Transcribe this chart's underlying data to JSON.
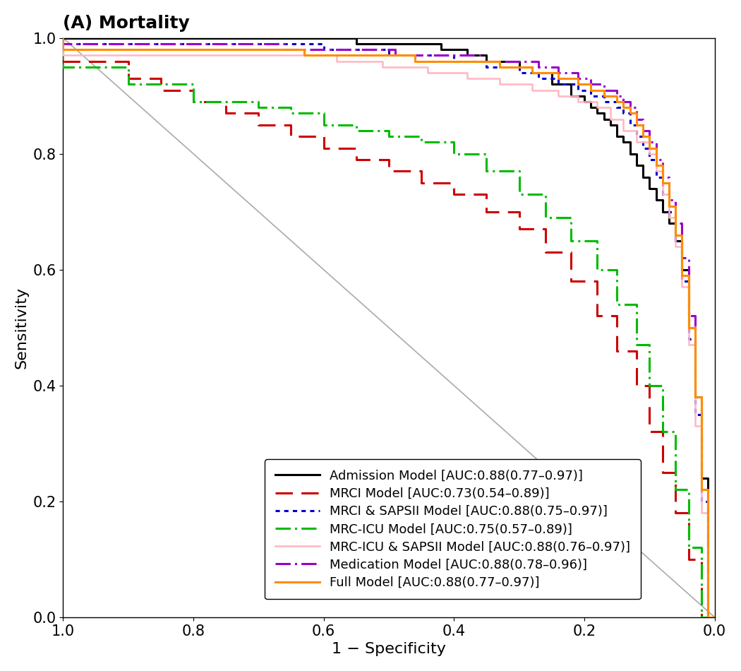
{
  "title": "(A) Mortality",
  "xlabel": "1 − Specificity",
  "ylabel": "Sensitivity",
  "xlim": [
    1.0,
    0.0
  ],
  "ylim": [
    0.0,
    1.0
  ],
  "xticks": [
    1.0,
    0.8,
    0.6,
    0.4,
    0.2,
    0.0
  ],
  "yticks": [
    0.0,
    0.2,
    0.4,
    0.6,
    0.8,
    1.0
  ],
  "background_color": "#ffffff",
  "diagonal_color": "#aaaaaa",
  "legend": [
    {
      "label": "Admission Model [AUC:0.88(0.77–0.97)]",
      "color": "#000000",
      "linestyle": "solid",
      "linewidth": 2.5
    },
    {
      "label": "MRCI Model [AUC:0.73(0.54–0.89)]",
      "color": "#cc0000",
      "linestyle": "dashed",
      "linewidth": 2.5
    },
    {
      "label": "MRCI & SAPSII Model [AUC:0.88(0.75–0.97)]",
      "color": "#0000cc",
      "linestyle": "dotted",
      "linewidth": 2.5
    },
    {
      "label": "MRC-ICU Model [AUC:0.75(0.57–0.89)]",
      "color": "#00bb00",
      "linestyle": "dashdot",
      "linewidth": 2.5
    },
    {
      "label": "MRC-ICU & SAPSII Model [AUC:0.88(0.76–0.97)]",
      "color": "#ffb6c1",
      "linestyle": "solid",
      "linewidth": 2.0
    },
    {
      "label": "Medication Model [AUC:0.88(0.78–0.96)]",
      "color": "#9900cc",
      "linestyle": "dashdot",
      "linewidth": 2.5
    },
    {
      "label": "Full Model [AUC:0.88(0.77–0.97)]",
      "color": "#ff8c00",
      "linestyle": "solid",
      "linewidth": 2.5
    }
  ],
  "admission_fpr": [
    0.0,
    0.01,
    0.02,
    0.03,
    0.04,
    0.05,
    0.06,
    0.07,
    0.08,
    0.09,
    0.1,
    0.11,
    0.12,
    0.13,
    0.14,
    0.15,
    0.16,
    0.17,
    0.18,
    0.19,
    0.2,
    0.22,
    0.25,
    0.28,
    0.3,
    0.35,
    0.38,
    0.4,
    0.42,
    0.45,
    0.5,
    0.55,
    0.6,
    0.65,
    0.7,
    1.0
  ],
  "admission_tpr": [
    0.0,
    0.24,
    0.38,
    0.5,
    0.6,
    0.65,
    0.68,
    0.7,
    0.72,
    0.74,
    0.76,
    0.78,
    0.8,
    0.82,
    0.83,
    0.85,
    0.86,
    0.87,
    0.88,
    0.89,
    0.9,
    0.92,
    0.94,
    0.95,
    0.96,
    0.97,
    0.98,
    0.98,
    0.99,
    0.99,
    0.99,
    1.0,
    1.0,
    1.0,
    1.0,
    1.0
  ],
  "mrci_fpr": [
    0.0,
    0.02,
    0.04,
    0.06,
    0.08,
    0.1,
    0.12,
    0.15,
    0.18,
    0.22,
    0.26,
    0.3,
    0.35,
    0.4,
    0.45,
    0.5,
    0.55,
    0.6,
    0.65,
    0.7,
    0.75,
    0.8,
    0.85,
    0.9,
    1.0
  ],
  "mrci_tpr": [
    0.0,
    0.1,
    0.18,
    0.25,
    0.32,
    0.4,
    0.46,
    0.52,
    0.58,
    0.63,
    0.67,
    0.7,
    0.73,
    0.75,
    0.77,
    0.79,
    0.81,
    0.83,
    0.85,
    0.87,
    0.89,
    0.91,
    0.93,
    0.96,
    1.0
  ],
  "mrci_sapsii_fpr": [
    0.0,
    0.01,
    0.02,
    0.03,
    0.04,
    0.05,
    0.06,
    0.07,
    0.08,
    0.09,
    0.1,
    0.11,
    0.12,
    0.13,
    0.14,
    0.15,
    0.17,
    0.19,
    0.21,
    0.24,
    0.27,
    0.3,
    0.35,
    0.4,
    0.45,
    0.5,
    0.55,
    0.6,
    1.0
  ],
  "mrci_sapsii_tpr": [
    0.0,
    0.2,
    0.35,
    0.48,
    0.58,
    0.65,
    0.7,
    0.73,
    0.76,
    0.79,
    0.81,
    0.83,
    0.85,
    0.87,
    0.88,
    0.89,
    0.9,
    0.91,
    0.92,
    0.93,
    0.94,
    0.95,
    0.96,
    0.97,
    0.97,
    0.98,
    0.98,
    0.99,
    1.0
  ],
  "mrcicu_fpr": [
    0.0,
    0.02,
    0.04,
    0.06,
    0.08,
    0.1,
    0.12,
    0.15,
    0.18,
    0.22,
    0.26,
    0.3,
    0.35,
    0.4,
    0.45,
    0.5,
    0.55,
    0.6,
    0.65,
    0.7,
    0.8,
    0.9,
    1.0
  ],
  "mrcicu_tpr": [
    0.0,
    0.12,
    0.22,
    0.32,
    0.4,
    0.47,
    0.54,
    0.6,
    0.65,
    0.69,
    0.73,
    0.77,
    0.8,
    0.82,
    0.83,
    0.84,
    0.85,
    0.87,
    0.88,
    0.89,
    0.92,
    0.95,
    1.0
  ],
  "mrcicu_sapsii_fpr": [
    0.0,
    0.01,
    0.02,
    0.03,
    0.04,
    0.05,
    0.06,
    0.07,
    0.08,
    0.09,
    0.1,
    0.12,
    0.14,
    0.16,
    0.18,
    0.21,
    0.24,
    0.28,
    0.33,
    0.38,
    0.44,
    0.51,
    0.58,
    1.0
  ],
  "mrcicu_sapsii_tpr": [
    0.0,
    0.18,
    0.33,
    0.47,
    0.57,
    0.64,
    0.69,
    0.73,
    0.77,
    0.8,
    0.82,
    0.84,
    0.86,
    0.88,
    0.89,
    0.9,
    0.91,
    0.92,
    0.93,
    0.94,
    0.95,
    0.96,
    0.97,
    1.0
  ],
  "medication_fpr": [
    0.0,
    0.01,
    0.02,
    0.03,
    0.04,
    0.05,
    0.06,
    0.07,
    0.08,
    0.09,
    0.1,
    0.11,
    0.12,
    0.13,
    0.14,
    0.15,
    0.17,
    0.19,
    0.21,
    0.24,
    0.27,
    0.31,
    0.36,
    0.42,
    0.49,
    0.57,
    0.66,
    1.0
  ],
  "medication_tpr": [
    0.0,
    0.22,
    0.38,
    0.52,
    0.62,
    0.68,
    0.72,
    0.76,
    0.79,
    0.82,
    0.84,
    0.86,
    0.88,
    0.89,
    0.9,
    0.91,
    0.92,
    0.93,
    0.94,
    0.95,
    0.96,
    0.96,
    0.97,
    0.97,
    0.98,
    0.98,
    0.99,
    1.0
  ],
  "full_fpr": [
    0.0,
    0.01,
    0.02,
    0.03,
    0.04,
    0.05,
    0.06,
    0.07,
    0.08,
    0.09,
    0.1,
    0.11,
    0.12,
    0.13,
    0.14,
    0.15,
    0.17,
    0.19,
    0.21,
    0.24,
    0.28,
    0.33,
    0.39,
    0.46,
    0.54,
    0.63,
    1.0
  ],
  "full_tpr": [
    0.0,
    0.22,
    0.38,
    0.5,
    0.59,
    0.66,
    0.71,
    0.75,
    0.78,
    0.81,
    0.83,
    0.85,
    0.87,
    0.88,
    0.89,
    0.9,
    0.91,
    0.92,
    0.93,
    0.94,
    0.95,
    0.96,
    0.96,
    0.97,
    0.97,
    0.98,
    1.0
  ],
  "title_fontsize": 18,
  "axis_label_fontsize": 16,
  "tick_fontsize": 15,
  "legend_fontsize": 13
}
